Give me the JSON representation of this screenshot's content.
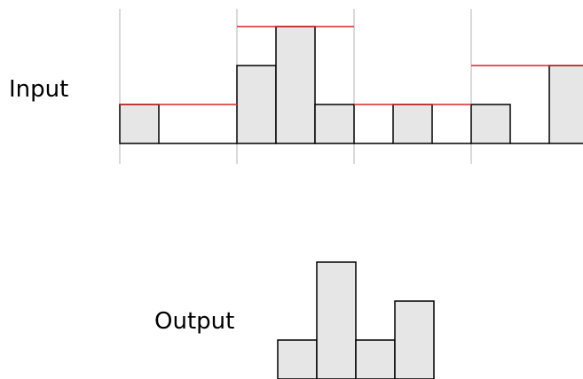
{
  "labels": {
    "input": "Input",
    "output": "Output"
  },
  "colors": {
    "bar_fill": "#e6e6e6",
    "bar_stroke": "#000000",
    "max_line": "#d62728",
    "divider": "#b3b3b3"
  },
  "input": {
    "pool_size": 3,
    "values": [
      1,
      0,
      0,
      2,
      3,
      1,
      0,
      1,
      0,
      1,
      0,
      2
    ],
    "window_max": [
      1,
      3,
      1,
      2
    ]
  },
  "output": {
    "values": [
      1,
      3,
      1,
      2
    ]
  }
}
